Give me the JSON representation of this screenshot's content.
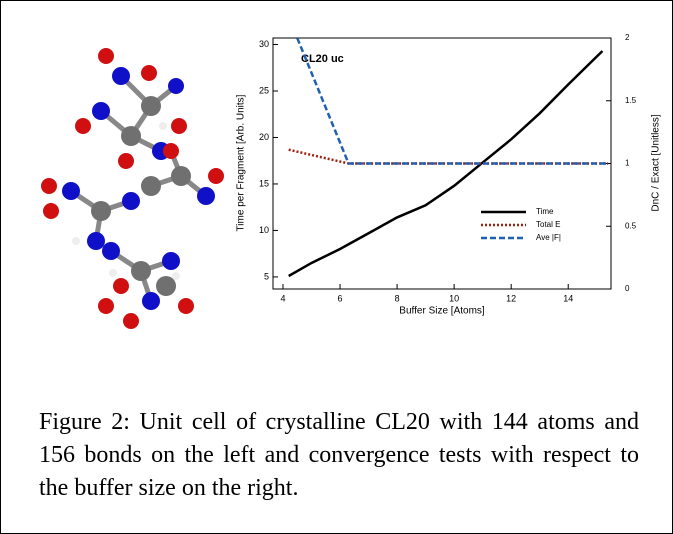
{
  "chart_data": {
    "type": "line",
    "annotation": "CL20 uc",
    "xlabel": "Buffer Size [Atoms]",
    "ylabel": "Time per Fragment [Arb. Units]",
    "y2label": "DnC / Exact  [Unitless]",
    "xlim": [
      3.65,
      15.5
    ],
    "xticks": [
      4,
      6,
      8,
      10,
      12,
      14
    ],
    "ylim": [
      3.7,
      30.7
    ],
    "yticks": [
      5,
      10,
      15,
      20,
      25,
      30
    ],
    "y2lim": [
      0,
      2
    ],
    "y2ticks": [
      0,
      0.5,
      1,
      1.5,
      2
    ],
    "series": [
      {
        "name": "Time",
        "color": "#000000",
        "dash": "solid",
        "x": [
          4.2,
          5,
          6,
          7,
          8,
          9,
          10,
          11,
          12,
          13,
          14,
          15.2
        ],
        "values": [
          5.1,
          6.5,
          8,
          9.7,
          11.4,
          12.7,
          14.8,
          17.3,
          19.8,
          22.6,
          25.7,
          29.3
        ]
      },
      {
        "name": "Total E",
        "color": "#a0200f",
        "dash": "dotted",
        "axis": "y2",
        "x": [
          4.2,
          6.3,
          15.4
        ],
        "values": [
          1.11,
          1.0,
          1.0
        ]
      },
      {
        "name": "Ave |F|",
        "color": "#2060b0",
        "dash": "dashed",
        "axis": "y2",
        "x": [
          4.5,
          6.3,
          15.4
        ],
        "values": [
          2.0,
          1.0,
          1.0
        ]
      }
    ]
  },
  "caption": "Figure 2: Unit cell of crystalline CL20 with 144 atoms and 156 bonds on the left and convergence tests with respect to the buffer size on the right."
}
